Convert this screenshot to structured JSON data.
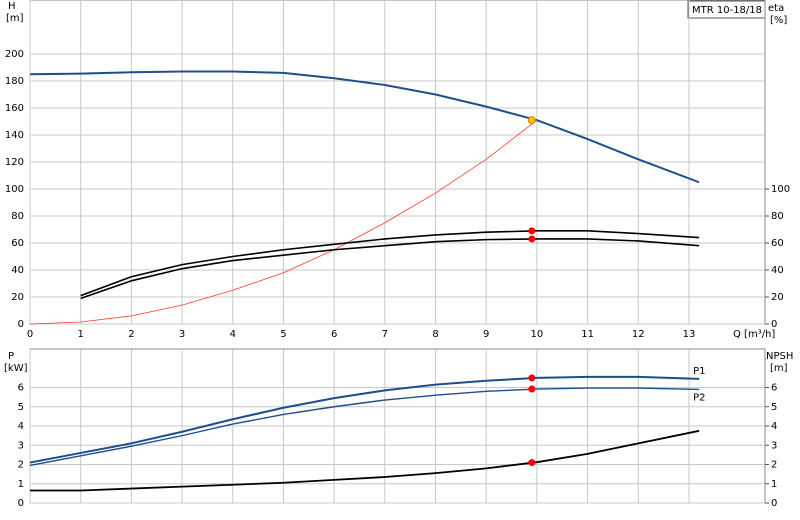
{
  "chart_data": [
    {
      "type": "line",
      "title": "MTR 10-18/18",
      "xlabel": "Q [m³/h]",
      "ylabel": "H",
      "ylabel_unit": "[m]",
      "y2label": "eta",
      "y2label_unit": "[%]",
      "xlim": [
        0,
        14.5
      ],
      "xticks": [
        0,
        1,
        2,
        3,
        4,
        5,
        6,
        7,
        8,
        9,
        10,
        11,
        12,
        13
      ],
      "xtick_labels": true,
      "ylim": [
        0,
        240
      ],
      "yticks": [
        0,
        20,
        40,
        60,
        80,
        100,
        120,
        140,
        160,
        180,
        200
      ],
      "y2lim": [
        0,
        240
      ],
      "y2ticks": [
        0,
        20,
        40,
        60,
        80,
        100
      ],
      "grid": true,
      "series": [
        {
          "mode": "line",
          "color": "#1f4e8c",
          "width": 2,
          "x": [
            0,
            1,
            2,
            3,
            4,
            5,
            6,
            7,
            8,
            9,
            10,
            11,
            12,
            13.2
          ],
          "values": [
            185,
            185.5,
            186.5,
            187,
            187,
            186,
            182,
            177,
            170,
            161,
            151,
            137,
            122,
            105
          ]
        },
        {
          "mode": "line",
          "color": "#ff3b30",
          "width": 0.8,
          "x": [
            0,
            1,
            2,
            3,
            4,
            5,
            6,
            7,
            8,
            9,
            10
          ],
          "values": [
            0,
            1.5,
            6,
            14,
            25,
            38,
            55,
            75,
            97,
            122,
            151
          ]
        },
        {
          "mode": "line",
          "axis": "y2",
          "color": "#000000",
          "width": 1.6,
          "x": [
            1,
            2,
            3,
            4,
            5,
            6,
            7,
            8,
            9,
            10,
            11,
            12,
            13.2
          ],
          "values": [
            21,
            35,
            44,
            50,
            55,
            59,
            63,
            66,
            68,
            69,
            69,
            67,
            64
          ]
        },
        {
          "mode": "line",
          "axis": "y2",
          "color": "#000000",
          "width": 1.6,
          "x": [
            1,
            2,
            3,
            4,
            5,
            6,
            7,
            8,
            9,
            10,
            11,
            12,
            13.2
          ],
          "values": [
            19,
            32,
            41,
            47,
            51,
            55,
            58,
            61,
            62.5,
            63,
            63,
            61.5,
            58
          ]
        },
        {
          "mode": "markers",
          "color": "#ffc000",
          "x": [
            9.9
          ],
          "values": [
            151
          ]
        },
        {
          "mode": "markers",
          "axis": "y2",
          "color": "#ff0000",
          "x": [
            9.9,
            9.9
          ],
          "values": [
            69,
            63
          ]
        }
      ]
    },
    {
      "type": "line",
      "ylabel": "P",
      "ylabel_unit": "[kW]",
      "y2label": "NPSH",
      "y2label_unit": "[m]",
      "xlim": [
        0,
        14.5
      ],
      "xticks": [
        0,
        1,
        2,
        3,
        4,
        5,
        6,
        7,
        8,
        9,
        10,
        11,
        12,
        13
      ],
      "xtick_labels": false,
      "ylim": [
        0,
        8
      ],
      "yticks": [
        0,
        1,
        2,
        3,
        4,
        5,
        6
      ],
      "y2lim": [
        0,
        8
      ],
      "y2ticks": [
        0,
        1,
        2,
        3,
        4,
        5,
        6
      ],
      "grid": true,
      "series": [
        {
          "mode": "line",
          "name": "P1",
          "color": "#1f4e8c",
          "width": 2,
          "x": [
            0,
            1,
            2,
            3,
            4,
            5,
            6,
            7,
            8,
            9,
            10,
            11,
            12,
            13.2
          ],
          "values": [
            2.1,
            2.6,
            3.1,
            3.7,
            4.35,
            4.95,
            5.45,
            5.85,
            6.15,
            6.35,
            6.5,
            6.55,
            6.55,
            6.45
          ]
        },
        {
          "mode": "line",
          "name": "P2",
          "color": "#1f4e8c",
          "width": 1.4,
          "x": [
            0,
            1,
            2,
            3,
            4,
            5,
            6,
            7,
            8,
            9,
            10,
            11,
            12,
            13.2
          ],
          "values": [
            1.95,
            2.45,
            2.95,
            3.5,
            4.1,
            4.6,
            5.0,
            5.35,
            5.6,
            5.8,
            5.92,
            5.97,
            5.97,
            5.9
          ]
        },
        {
          "mode": "line",
          "axis": "y2",
          "color": "#000000",
          "width": 1.8,
          "x": [
            0,
            1,
            2,
            3,
            4,
            5,
            6,
            7,
            8,
            9,
            10,
            11,
            12,
            13.2
          ],
          "values": [
            0.65,
            0.65,
            0.75,
            0.85,
            0.95,
            1.05,
            1.2,
            1.35,
            1.55,
            1.8,
            2.12,
            2.55,
            3.1,
            3.75
          ]
        },
        {
          "mode": "markers",
          "color": "#ff0000",
          "x": [
            9.9,
            9.9
          ],
          "values": [
            6.5,
            5.92
          ]
        },
        {
          "mode": "markers",
          "axis": "y2",
          "color": "#ff0000",
          "x": [
            9.9
          ],
          "values": [
            2.1
          ]
        }
      ]
    }
  ]
}
